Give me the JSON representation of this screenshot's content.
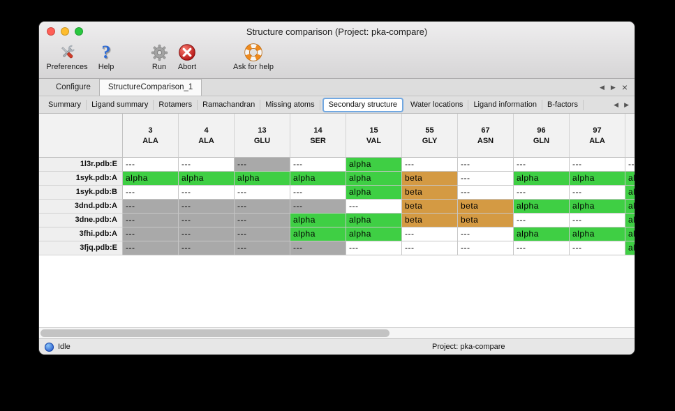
{
  "window": {
    "title": "Structure comparison (Project: pka-compare)"
  },
  "toolbar": {
    "items": [
      {
        "id": "preferences",
        "label": "Preferences",
        "icon": "tools-icon"
      },
      {
        "id": "help",
        "label": "Help",
        "icon": "question-icon",
        "glyph": "?"
      },
      {
        "id": "run",
        "label": "Run",
        "icon": "gear-icon"
      },
      {
        "id": "abort",
        "label": "Abort",
        "icon": "abort-icon"
      },
      {
        "id": "ask_for_help",
        "label": "Ask for help",
        "icon": "lifebuoy-icon"
      }
    ]
  },
  "doc_tabs": {
    "tabs": [
      {
        "label": "Configure",
        "selected": false
      },
      {
        "label": "StructureComparison_1",
        "selected": true
      }
    ],
    "controls": {
      "prev": "◀",
      "next": "▶",
      "close": "×"
    }
  },
  "view_tabs": {
    "tabs": [
      {
        "label": "Summary",
        "selected": false
      },
      {
        "label": "Ligand summary",
        "selected": false
      },
      {
        "label": "Rotamers",
        "selected": false
      },
      {
        "label": "Ramachandran",
        "selected": false
      },
      {
        "label": "Missing atoms",
        "selected": false
      },
      {
        "label": "Secondary structure",
        "selected": true
      },
      {
        "label": "Water locations",
        "selected": false
      },
      {
        "label": "Ligand information",
        "selected": false
      },
      {
        "label": "B-factors",
        "selected": false
      }
    ],
    "controls": {
      "prev": "◀",
      "next": "▶"
    }
  },
  "table": {
    "columns": [
      {
        "number": "3",
        "residue": "ALA"
      },
      {
        "number": "4",
        "residue": "ALA"
      },
      {
        "number": "13",
        "residue": "GLU"
      },
      {
        "number": "14",
        "residue": "SER"
      },
      {
        "number": "15",
        "residue": "VAL"
      },
      {
        "number": "55",
        "residue": "GLY"
      },
      {
        "number": "67",
        "residue": "ASN"
      },
      {
        "number": "96",
        "residue": "GLN"
      },
      {
        "number": "97",
        "residue": "ALA"
      }
    ],
    "rows": [
      {
        "name": "1l3r.pdb:E",
        "cells": [
          {
            "text": "---",
            "style": "plain"
          },
          {
            "text": "---",
            "style": "plain"
          },
          {
            "text": "---",
            "style": "gray"
          },
          {
            "text": "---",
            "style": "plain"
          },
          {
            "text": "alpha",
            "style": "alpha"
          },
          {
            "text": "---",
            "style": "plain"
          },
          {
            "text": "---",
            "style": "plain"
          },
          {
            "text": "---",
            "style": "plain"
          },
          {
            "text": "---",
            "style": "plain"
          }
        ],
        "partial": {
          "text": "---",
          "style": "plain"
        }
      },
      {
        "name": "1syk.pdb:A",
        "cells": [
          {
            "text": "alpha",
            "style": "alpha"
          },
          {
            "text": "alpha",
            "style": "alpha"
          },
          {
            "text": "alpha",
            "style": "alpha"
          },
          {
            "text": "alpha",
            "style": "alpha"
          },
          {
            "text": "alpha",
            "style": "alpha"
          },
          {
            "text": "beta",
            "style": "beta"
          },
          {
            "text": "---",
            "style": "plain"
          },
          {
            "text": "alpha",
            "style": "alpha"
          },
          {
            "text": "alpha",
            "style": "alpha"
          }
        ],
        "partial": {
          "text": "alpha",
          "style": "alpha"
        }
      },
      {
        "name": "1syk.pdb:B",
        "cells": [
          {
            "text": "---",
            "style": "plain"
          },
          {
            "text": "---",
            "style": "plain"
          },
          {
            "text": "---",
            "style": "plain"
          },
          {
            "text": "---",
            "style": "plain"
          },
          {
            "text": "alpha",
            "style": "alpha"
          },
          {
            "text": "beta",
            "style": "beta"
          },
          {
            "text": "---",
            "style": "plain"
          },
          {
            "text": "---",
            "style": "plain"
          },
          {
            "text": "---",
            "style": "plain"
          }
        ],
        "partial": {
          "text": "alpha",
          "style": "alpha"
        }
      },
      {
        "name": "3dnd.pdb:A",
        "cells": [
          {
            "text": "---",
            "style": "gray"
          },
          {
            "text": "---",
            "style": "gray"
          },
          {
            "text": "---",
            "style": "gray"
          },
          {
            "text": "---",
            "style": "gray"
          },
          {
            "text": "---",
            "style": "plain"
          },
          {
            "text": "beta",
            "style": "beta"
          },
          {
            "text": "beta",
            "style": "beta"
          },
          {
            "text": "alpha",
            "style": "alpha"
          },
          {
            "text": "alpha",
            "style": "alpha"
          }
        ],
        "partial": {
          "text": "alpha",
          "style": "alpha"
        }
      },
      {
        "name": "3dne.pdb:A",
        "cells": [
          {
            "text": "---",
            "style": "gray"
          },
          {
            "text": "---",
            "style": "gray"
          },
          {
            "text": "---",
            "style": "gray"
          },
          {
            "text": "alpha",
            "style": "alpha"
          },
          {
            "text": "alpha",
            "style": "alpha"
          },
          {
            "text": "beta",
            "style": "beta"
          },
          {
            "text": "beta",
            "style": "beta"
          },
          {
            "text": "---",
            "style": "plain"
          },
          {
            "text": "---",
            "style": "plain"
          }
        ],
        "partial": {
          "text": "alpha",
          "style": "alpha"
        }
      },
      {
        "name": "3fhi.pdb:A",
        "cells": [
          {
            "text": "---",
            "style": "gray"
          },
          {
            "text": "---",
            "style": "gray"
          },
          {
            "text": "---",
            "style": "gray"
          },
          {
            "text": "alpha",
            "style": "alpha"
          },
          {
            "text": "alpha",
            "style": "alpha"
          },
          {
            "text": "---",
            "style": "plain"
          },
          {
            "text": "---",
            "style": "plain"
          },
          {
            "text": "alpha",
            "style": "alpha"
          },
          {
            "text": "alpha",
            "style": "alpha"
          }
        ],
        "partial": {
          "text": "alpha",
          "style": "alpha"
        }
      },
      {
        "name": "3fjq.pdb:E",
        "cells": [
          {
            "text": "---",
            "style": "gray"
          },
          {
            "text": "---",
            "style": "gray"
          },
          {
            "text": "---",
            "style": "gray"
          },
          {
            "text": "---",
            "style": "gray"
          },
          {
            "text": "---",
            "style": "plain"
          },
          {
            "text": "---",
            "style": "plain"
          },
          {
            "text": "---",
            "style": "plain"
          },
          {
            "text": "---",
            "style": "plain"
          },
          {
            "text": "---",
            "style": "plain"
          }
        ],
        "partial": {
          "text": "alpha",
          "style": "alpha"
        }
      }
    ]
  },
  "status_bar": {
    "status": "Idle",
    "project": "Project: pka-compare"
  },
  "colors": {
    "alpha": "#3fcf44",
    "beta": "#d49a43",
    "none_gray": "#a9a9a9",
    "traffic_red": "#ff5f57",
    "traffic_yellow": "#febc2e",
    "traffic_green": "#29c73f",
    "tab_focus_blue": "#72a8e1"
  }
}
